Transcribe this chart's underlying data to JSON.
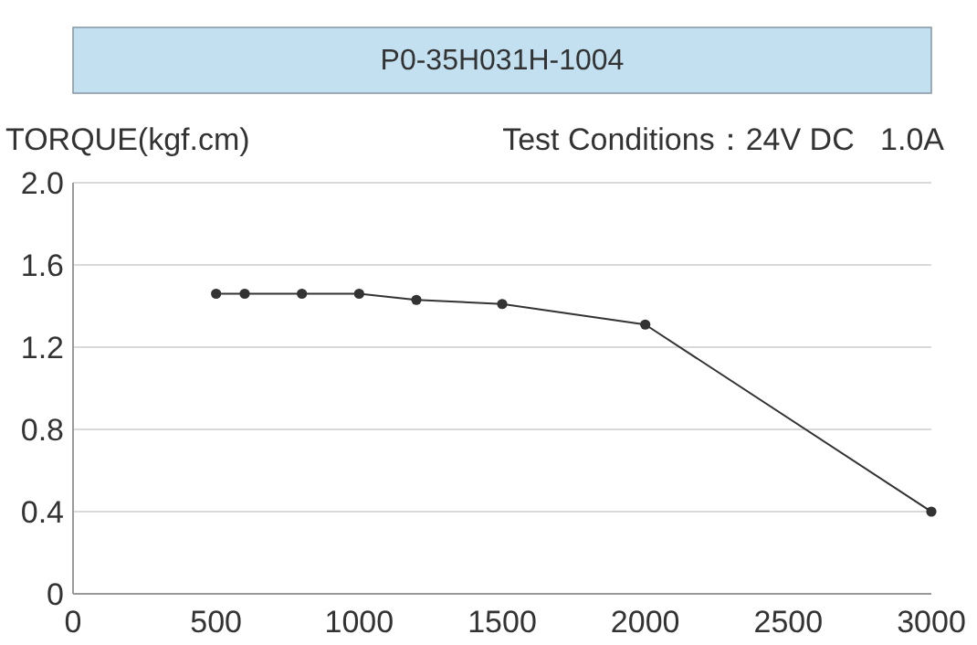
{
  "chart_data": {
    "type": "line",
    "title": "P0-35H031H-1004",
    "ylabel": "TORQUE(kgf.cm)",
    "subtitle": "Test Conditions：24V DC   1.0A",
    "x": [
      500,
      600,
      800,
      1000,
      1200,
      1500,
      2000,
      3000
    ],
    "series": [
      {
        "color": "#333333",
        "values": [
          1.46,
          1.46,
          1.46,
          1.46,
          1.43,
          1.41,
          1.31,
          0.4
        ]
      }
    ],
    "xlim": [
      0,
      3000
    ],
    "xticks": [
      0,
      500,
      1000,
      1500,
      2000,
      2500,
      3000
    ],
    "ylim": [
      0,
      2.0
    ],
    "yticks": [
      {
        "value": 0,
        "label": "0"
      },
      {
        "value": 0.4,
        "label": "0.4"
      },
      {
        "value": 0.8,
        "label": "0.8"
      },
      {
        "value": 1.2,
        "label": "1.2"
      },
      {
        "value": 1.6,
        "label": "1.6"
      },
      {
        "value": 2.0,
        "label": "2.0"
      }
    ],
    "grid": "y",
    "marker": "circle",
    "line_style": "solid"
  }
}
